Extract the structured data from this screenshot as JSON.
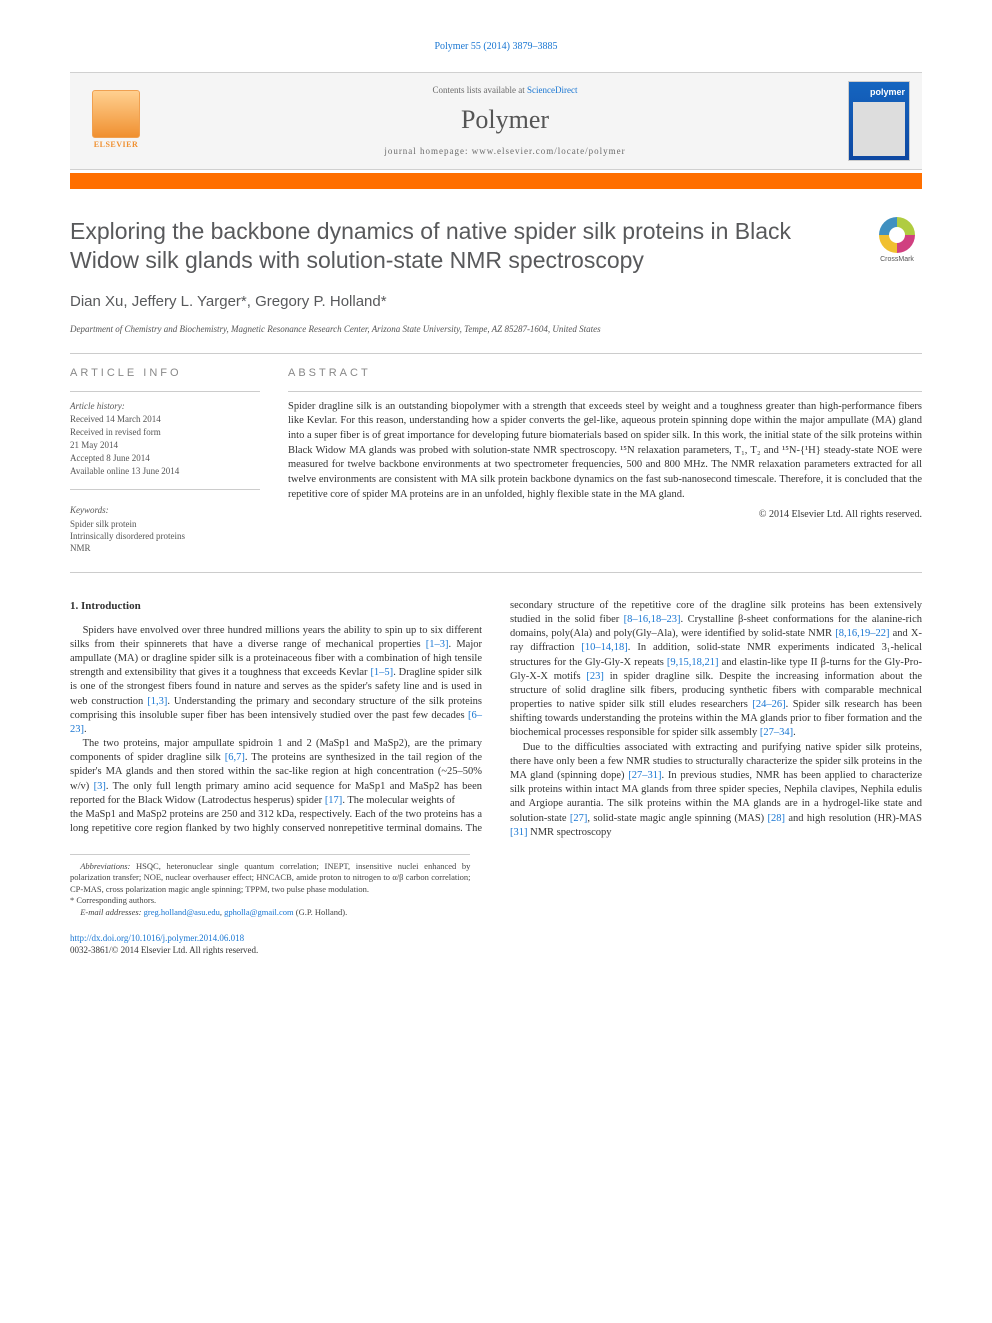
{
  "journal_ref": "Polymer 55 (2014) 3879–3885",
  "header": {
    "publisher": "ELSEVIER",
    "contents_prefix": "Contents lists available at ",
    "contents_link": "ScienceDirect",
    "journal_title": "Polymer",
    "homepage_prefix": "journal homepage: ",
    "homepage_url": "www.elsevier.com/locate/polymer",
    "cover_label": "polymer"
  },
  "article": {
    "title": "Exploring the backbone dynamics of native spider silk proteins in Black Widow silk glands with solution-state NMR spectroscopy",
    "crossmark_label": "CrossMark",
    "authors": "Dian Xu, Jeffery L. Yarger*, Gregory P. Holland*",
    "affiliation": "Department of Chemistry and Biochemistry, Magnetic Resonance Research Center, Arizona State University, Tempe, AZ 85287-1604, United States"
  },
  "info": {
    "article_info_head": "ARTICLE INFO",
    "abstract_head": "ABSTRACT",
    "history_label": "Article history:",
    "history": [
      "Received 14 March 2014",
      "Received in revised form",
      "21 May 2014",
      "Accepted 8 June 2014",
      "Available online 13 June 2014"
    ],
    "keywords_label": "Keywords:",
    "keywords": [
      "Spider silk protein",
      "Intrinsically disordered proteins",
      "NMR"
    ],
    "abstract": "Spider dragline silk is an outstanding biopolymer with a strength that exceeds steel by weight and a toughness greater than high-performance fibers like Kevlar. For this reason, understanding how a spider converts the gel-like, aqueous protein spinning dope within the major ampullate (MA) gland into a super fiber is of great importance for developing future biomaterials based on spider silk. In this work, the initial state of the silk proteins within Black Widow MA glands was probed with solution-state NMR spectroscopy. ¹⁵N relaxation parameters, T₁, T₂ and ¹⁵N-{¹H} steady-state NOE were measured for twelve backbone environments at two spectrometer frequencies, 500 and 800 MHz. The NMR relaxation parameters extracted for all twelve environments are consistent with MA silk protein backbone dynamics on the fast sub-nanosecond timescale. Therefore, it is concluded that the repetitive core of spider MA proteins are in an unfolded, highly flexible state in the MA gland.",
    "copyright": "© 2014 Elsevier Ltd. All rights reserved."
  },
  "body": {
    "section_head": "1. Introduction",
    "p1": "Spiders have envolved over three hundred millions years the ability to spin up to six different silks from their spinnerets that have a diverse range of mechanical properties [1–3]. Major ampullate (MA) or dragline spider silk is a proteinaceous fiber with a combination of high tensile strength and extensibility that gives it a toughness that exceeds Kevlar [1–5]. Dragline spider silk is one of the strongest fibers found in nature and serves as the spider's safety line and is used in web construction [1,3]. Understanding the primary and secondary structure of the silk proteins comprising this insoluble super fiber has been intensively studied over the past few decades [6–23].",
    "p2": "The two proteins, major ampullate spidroin 1 and 2 (MaSp1 and MaSp2), are the primary components of spider dragline silk [6,7]. The proteins are synthesized in the tail region of the spider's MA glands and then stored within the sac-like region at high concentration (~25–50% w/v) [3]. The only full length primary amino acid sequence for MaSp1 and MaSp2 has been reported for the Black Widow (Latrodectus hesperus) spider [17]. The molecular weights of",
    "p3": "the MaSp1 and MaSp2 proteins are 250 and 312 kDa, respectively. Each of the two proteins has a long repetitive core region flanked by two highly conserved nonrepetitive terminal domains. The secondary structure of the repetitive core of the dragline silk proteins has been extensively studied in the solid fiber [8–16,18–23]. Crystalline β-sheet conformations for the alanine-rich domains, poly(Ala) and poly(Gly–Ala), were identified by solid-state NMR [8,16,19–22] and X-ray diffraction [10–14,18]. In addition, solid-state NMR experiments indicated 3₁-helical structures for the Gly-Gly-X repeats [9,15,18,21] and elastin-like type II β-turns for the Gly-Pro-Gly-X-X motifs [23] in spider dragline silk. Despite the increasing information about the structure of solid dragline silk fibers, producing synthetic fibers with comparable mechnical properties to native spider silk still eludes researchers [24–26]. Spider silk research has been shifting towards understanding the proteins within the MA glands prior to fiber formation and the biochemical processes responsible for spider silk assembly [27–34].",
    "p4": "Due to the difficulties associated with extracting and purifying native spider silk proteins, there have only been a few NMR studies to structurally characterize the spider silk proteins in the MA gland (spinning dope) [27–31]. In previous studies, NMR has been applied to characterize silk proteins within intact MA glands from three spider species, Nephila clavipes, Nephila edulis and Argiope aurantia. The silk proteins within the MA glands are in a hydrogel-like state and solution-state [27], solid-state magic angle spinning (MAS) [28] and high resolution (HR)-MAS [31] NMR spectroscopy"
  },
  "footnotes": {
    "abbrev_label": "Abbreviations:",
    "abbrev_text": " HSQC, heteronuclear single quantum correlation; INEPT, insensitive nuclei enhanced by polarization transfer; NOE, nuclear overhauser effect; HNCACB, amide proton to nitrogen to α/β carbon correlation; CP-MAS, cross polarization magic angle spinning; TPPM, two pulse phase modulation.",
    "corresp": "* Corresponding authors.",
    "email_label": "E-mail addresses: ",
    "email1": "greg.holland@asu.edu",
    "email_sep": ", ",
    "email2": "gpholla@gmail.com",
    "email_suffix": " (G.P. Holland)."
  },
  "footer": {
    "doi": "http://dx.doi.org/10.1016/j.polymer.2014.06.018",
    "issn": "0032-3861/© 2014 Elsevier Ltd. All rights reserved."
  },
  "colors": {
    "link": "#1976d2",
    "accent": "#ff6f00",
    "heading": "#58595b",
    "text": "#333333",
    "rule": "#cccccc"
  },
  "typography": {
    "title_fontsize": 23,
    "authors_fontsize": 15,
    "body_fontsize": 10.5,
    "footnote_fontsize": 8.5,
    "journal_title_fontsize": 26
  }
}
